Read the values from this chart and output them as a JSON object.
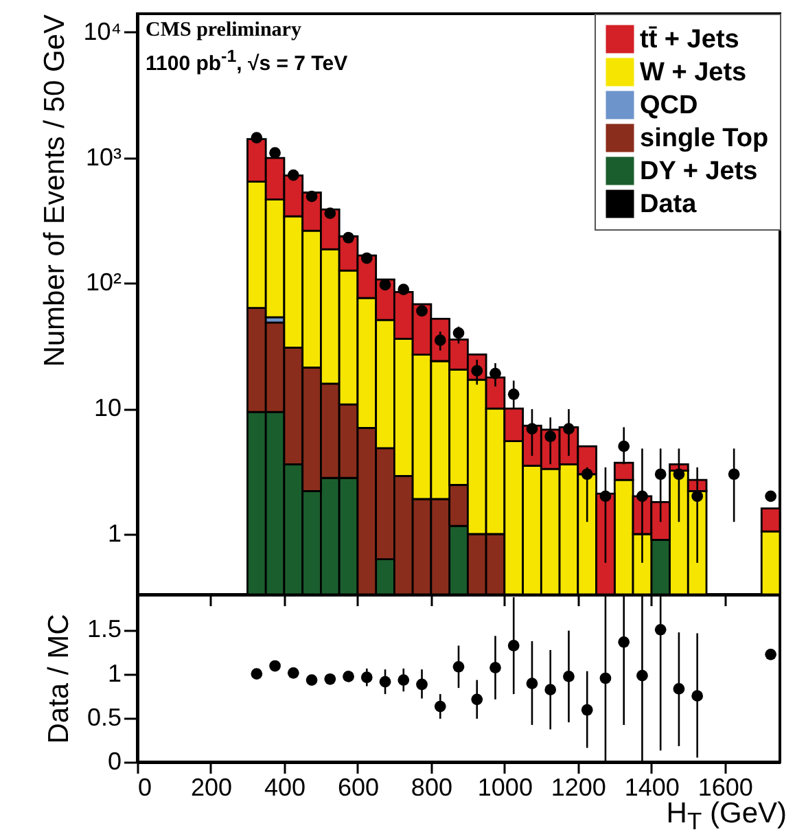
{
  "chart_data": [
    {
      "type": "bar",
      "stacked": true,
      "log": true,
      "ylabel": "Number of Events / 50 GeV",
      "legend": "top right",
      "tick_labels": "y",
      "annotations": [
        "CMS preliminary",
        "1100 pb$^{-1}$, √s = 7 TeV"
      ],
      "xlim": [
        0,
        1750
      ],
      "xticks": [
        0,
        200,
        400,
        600,
        800,
        1000,
        1200,
        1400,
        1600
      ],
      "ylim": [
        0.33,
        14000
      ],
      "yticks": [
        1,
        10,
        {
          "value": 100,
          "label": "10²"
        },
        {
          "value": 1000,
          "label": "10³"
        },
        {
          "value": 10000,
          "label": "10⁴"
        }
      ],
      "x": [
        325,
        375,
        425,
        475,
        525,
        575,
        625,
        675,
        725,
        775,
        825,
        875,
        925,
        975,
        1025,
        1075,
        1125,
        1175,
        1225,
        1275,
        1325,
        1375,
        1425,
        1475,
        1525,
        1725
      ],
      "series": [
        {
          "name": "DY + Jets",
          "color": "#1b5e2e",
          "values": [
            9.4,
            9.4,
            3.6,
            2.2,
            2.8,
            2.8,
            null,
            0.63,
            null,
            null,
            null,
            1.16,
            null,
            null,
            null,
            null,
            null,
            null,
            null,
            null,
            null,
            null,
            0.9,
            null,
            null,
            null
          ]
        },
        {
          "name": "single Top",
          "color": "#8b2d1c",
          "values": [
            54,
            39,
            27,
            19,
            13,
            8,
            7,
            4.2,
            2.9,
            1.9,
            1.9,
            1.3,
            1.0,
            1.0,
            null,
            null,
            null,
            null,
            null,
            null,
            null,
            null,
            null,
            null,
            null,
            null
          ]
        },
        {
          "name": "QCD",
          "color": "#6e94cc",
          "values": [
            null,
            5,
            null,
            null,
            null,
            null,
            null,
            null,
            null,
            null,
            null,
            null,
            null,
            null,
            null,
            null,
            null,
            null,
            null,
            null,
            null,
            null,
            null,
            null,
            null,
            null
          ]
        },
        {
          "name": "W + Jets",
          "color": "#f5e500",
          "values": [
            580,
            410,
            310,
            240,
            170,
            115,
            69,
            46,
            33,
            25,
            22,
            18,
            16,
            9,
            5.5,
            3.5,
            3.3,
            3.6,
            3.0,
            null,
            2.7,
            1.0,
            null,
            3.2,
            2.2,
            1.05
          ]
        },
        {
          "name": "tt̄ + Jets",
          "color": "#d42027",
          "values": [
            760,
            530,
            380,
            265,
            200,
            110,
            90,
            56,
            49,
            41,
            28,
            15,
            10,
            7.7,
            4.5,
            3.8,
            3.5,
            3.5,
            2.0,
            2.1,
            1.0,
            1.0,
            0.9,
            0.4,
            0.5,
            0.55
          ]
        },
        {
          "name": "Data",
          "type": "scatter",
          "color": "#000000",
          "marker": "circle",
          "x": [
            325,
            375,
            425,
            475,
            525,
            575,
            625,
            675,
            725,
            775,
            825,
            875,
            925,
            975,
            1025,
            1075,
            1125,
            1175,
            1225,
            1275,
            1325,
            1375,
            1425,
            1475,
            1525,
            1625,
            1725
          ],
          "values": [
            1440,
            1090,
            725,
            490,
            360,
            230,
            158,
            97,
            89,
            60,
            35,
            40,
            20,
            19,
            13,
            6.9,
            6.0,
            6.9,
            3.0,
            2.0,
            5.0,
            2.0,
            3.0,
            3.0,
            2.0,
            3.0,
            2.0
          ],
          "errors": [
            null,
            null,
            null,
            null,
            null,
            null,
            null,
            null,
            null,
            null,
            [
              29,
              41
            ],
            [
              33,
              45
            ],
            [
              15.5,
              24.5
            ],
            [
              15,
              23
            ],
            [
              9.9,
              16.7
            ],
            [
              4.2,
              9.9
            ],
            [
              3.6,
              8.5
            ],
            [
              4.2,
              9.9
            ],
            [
              1.25,
              3.4
            ],
            [
              0.59,
              3.4
            ],
            [
              3.6,
              7.1
            ],
            [
              0.59,
              4.8
            ],
            [
              1.25,
              4.8
            ],
            [
              1.25,
              4.8
            ],
            [
              0.59,
              3.4
            ],
            [
              1.25,
              4.8
            ],
            null
          ]
        }
      ]
    },
    {
      "type": "scatter",
      "xlabel": "H$_{T}$ (GeV)",
      "ylabel": "Data / MC",
      "color": "#000000",
      "marker": "circle",
      "xlim": [
        0,
        1750
      ],
      "xticks": [
        0,
        200,
        400,
        600,
        800,
        1000,
        1200,
        1400,
        1600
      ],
      "ylim": [
        0,
        1.9
      ],
      "yticks": [
        0,
        0.5,
        1,
        1.5
      ],
      "x": [
        325,
        375,
        425,
        475,
        525,
        575,
        625,
        675,
        725,
        775,
        825,
        875,
        925,
        975,
        1025,
        1075,
        1125,
        1175,
        1225,
        1275,
        1325,
        1375,
        1425,
        1475,
        1525,
        1725
      ],
      "values": [
        1.0,
        1.09,
        1.01,
        0.93,
        0.94,
        0.97,
        0.96,
        0.91,
        0.93,
        0.88,
        0.63,
        1.08,
        0.71,
        1.07,
        1.32,
        0.89,
        0.82,
        0.97,
        0.59,
        0.95,
        1.36,
        0.98,
        1.5,
        0.83,
        0.75,
        1.22
      ],
      "errors": [
        null,
        null,
        null,
        null,
        null,
        null,
        [
          0.86,
          1.06
        ],
        [
          0.77,
          1.05
        ],
        [
          0.8,
          1.06
        ],
        [
          0.72,
          1.05
        ],
        [
          0.49,
          0.77
        ],
        [
          0.84,
          1.32
        ],
        [
          0.49,
          0.93
        ],
        [
          0.71,
          1.43
        ],
        [
          0.77,
          1.87
        ],
        [
          0.42,
          1.37
        ],
        [
          0.37,
          1.27
        ],
        [
          0.45,
          1.49
        ],
        [
          0.16,
          1.03
        ],
        [
          0,
          1.89
        ],
        [
          0.42,
          1.89
        ],
        [
          0,
          1.89
        ],
        [
          0.13,
          1.89
        ],
        [
          0.18,
          1.47
        ],
        [
          0.05,
          1.46
        ],
        null
      ]
    }
  ]
}
